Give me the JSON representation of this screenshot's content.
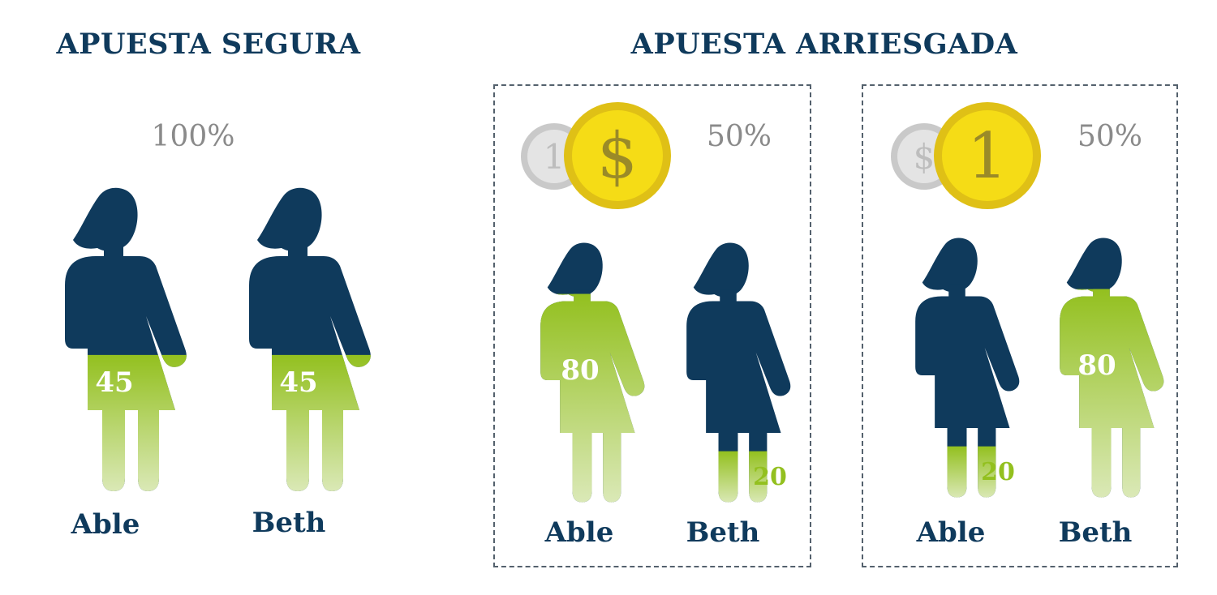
{
  "colors": {
    "navy": "#0f3a5c",
    "green": "#93c01f",
    "gray": "#8a8a8a",
    "gold": "#f2d21a",
    "silver": "#cccccc"
  },
  "sure_bet": {
    "title": "APUESTA SEGURA",
    "probability": "100%",
    "people": [
      {
        "name": "Able",
        "value": "45",
        "fill_fraction": 0.45
      },
      {
        "name": "Beth",
        "value": "45",
        "fill_fraction": 0.45
      }
    ]
  },
  "risky_bet": {
    "title": "APUESTA ARRIESGADA",
    "outcomes": [
      {
        "probability": "50%",
        "coin_front": {
          "symbol": "$",
          "icon": "gold-coin-dollar-icon"
        },
        "coin_back": {
          "symbol": "1",
          "icon": "silver-coin-one-icon"
        },
        "people": [
          {
            "name": "Able",
            "value": "80",
            "fill_fraction": 0.8
          },
          {
            "name": "Beth",
            "value": "20",
            "fill_fraction": 0.2
          }
        ]
      },
      {
        "probability": "50%",
        "coin_front": {
          "symbol": "1",
          "icon": "gold-coin-one-icon"
        },
        "coin_back": {
          "symbol": "$",
          "icon": "silver-coin-dollar-icon"
        },
        "people": [
          {
            "name": "Able",
            "value": "20",
            "fill_fraction": 0.2
          },
          {
            "name": "Beth",
            "value": "80",
            "fill_fraction": 0.8
          }
        ]
      }
    ]
  }
}
